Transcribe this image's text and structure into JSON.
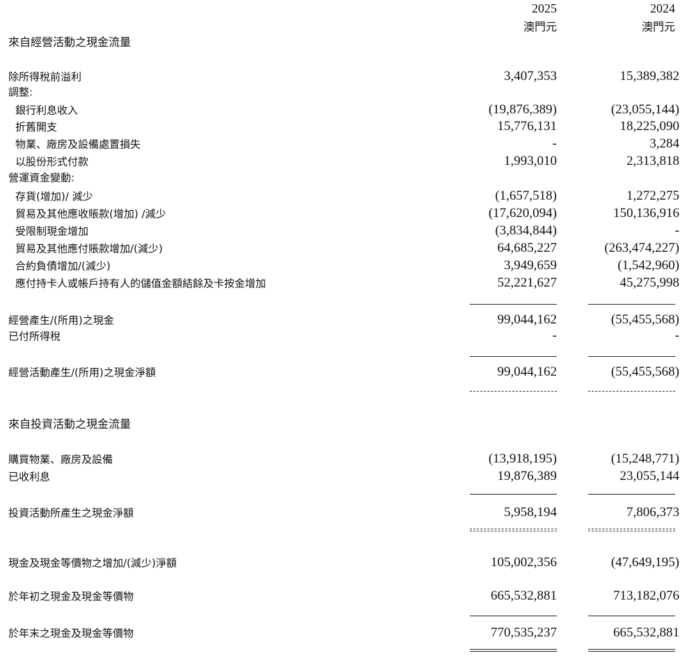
{
  "header": {
    "years": [
      "2025",
      "2024"
    ],
    "currency": [
      "澳門元",
      "澳門元"
    ]
  },
  "rows": [
    {
      "label": "來自經營活動之現金流量",
      "type": "section"
    },
    {
      "label": "除所得稅前溢利",
      "values": [
        "3,407,353",
        "15,389,382"
      ]
    },
    {
      "label": "調整:"
    },
    {
      "label": "銀行利息收入",
      "indent": true,
      "values": [
        "(19,876,389)",
        "(23,055,144)"
      ]
    },
    {
      "label": "折舊開支",
      "indent": true,
      "values": [
        "15,776,131",
        "18,225,090"
      ]
    },
    {
      "label": "物業、廠房及設備處置損失",
      "indent": true,
      "values": [
        "-",
        "3,284"
      ]
    },
    {
      "label": "以股份形式付款",
      "indent": true,
      "values": [
        "1,993,010",
        "2,313,818"
      ]
    },
    {
      "label": "營運資金變動:"
    },
    {
      "label": "存貨(增加)/ 減少",
      "indent": true,
      "values": [
        "(1,657,518)",
        "1,272,275"
      ]
    },
    {
      "label": "貿易及其他應收賬款(增加) /減少",
      "indent": true,
      "values": [
        "(17,620,094)",
        "150,136,916"
      ]
    },
    {
      "label": "受限制現金增加",
      "indent": true,
      "values": [
        "(3,834,844)",
        "-"
      ]
    },
    {
      "label": "貿易及其他應付賬款增加/(減少)",
      "indent": true,
      "values": [
        "64,685,227",
        "(263,474,227)"
      ]
    },
    {
      "label": "合約負債增加/(減少)",
      "indent": true,
      "values": [
        "3,949,659",
        "(1,542,960)"
      ]
    },
    {
      "label": "應付持卡人或帳戶持有人的儲值金額結餘及卡按金增加",
      "indent": true,
      "values": [
        "52,221,627",
        "45,275,998"
      ]
    },
    {
      "label": "經營產生/(所用)之現金",
      "values": [
        "99,044,162",
        "(55,455,568)"
      ]
    },
    {
      "label": "已付所得稅",
      "values": [
        "-",
        "-"
      ]
    },
    {
      "label": "經營活動產生/(所用)之現金淨額",
      "values": [
        "99,044,162",
        "(55,455,568)"
      ]
    },
    {
      "label": "來自投資活動之現金流量",
      "type": "section"
    },
    {
      "label": "購買物業、廠房及設備",
      "values": [
        "(13,918,195)",
        "(15,248,771)"
      ]
    },
    {
      "label": "已收利息",
      "values": [
        "19,876,389",
        "23,055,144"
      ]
    },
    {
      "label": "投資活動所產生之現金淨額",
      "values": [
        "5,958,194",
        "7,806,373"
      ]
    },
    {
      "label": "現金及現金等價物之增加/(減少)淨額",
      "values": [
        "105,002,356",
        "(47,649,195)"
      ]
    },
    {
      "label": "於年初之現金及現金等價物",
      "values": [
        "665,532,881",
        "713,182,076"
      ]
    },
    {
      "label": "於年末之現金及現金等價物",
      "values": [
        "770,535,237",
        "665,532,881"
      ]
    }
  ]
}
